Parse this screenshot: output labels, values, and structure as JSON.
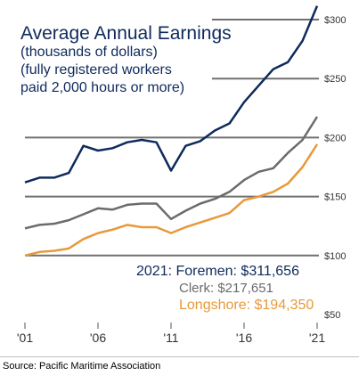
{
  "chart_data": {
    "type": "line",
    "title": "Average Annual Earnings",
    "subtitle_lines": [
      "(thousands of dollars)",
      "(fully registered workers",
      "paid 2,000 hours or more)"
    ],
    "x": [
      2001,
      2002,
      2003,
      2004,
      2005,
      2006,
      2007,
      2008,
      2009,
      2010,
      2011,
      2012,
      2013,
      2014,
      2015,
      2016,
      2017,
      2018,
      2019,
      2020,
      2021
    ],
    "x_tick_values": [
      2001,
      2006,
      2011,
      2016,
      2021
    ],
    "x_tick_labels": [
      "'01",
      "'06",
      "'11",
      "'16",
      "'21"
    ],
    "y_tick_values": [
      50,
      100,
      150,
      200,
      250,
      300
    ],
    "y_tick_labels": [
      "$50",
      "$100",
      "$150",
      "$200",
      "$250",
      "$300"
    ],
    "ylim": [
      50,
      310
    ],
    "series": [
      {
        "name": "Foremen",
        "color": "#0e2a5c",
        "values": [
          162,
          166,
          166,
          170,
          193,
          189,
          191,
          196,
          198,
          196,
          172,
          193,
          197,
          206,
          212,
          230,
          244,
          258,
          264,
          282,
          311.656
        ]
      },
      {
        "name": "Clerk",
        "color": "#6b6b6b",
        "values": [
          123,
          126,
          127,
          130,
          135,
          140,
          139,
          143,
          144,
          144,
          131,
          138,
          144,
          148,
          154,
          164,
          171,
          174,
          187,
          198,
          217.651
        ]
      },
      {
        "name": "Longshore",
        "color": "#e8993a",
        "values": [
          100,
          103,
          104,
          106,
          114,
          119,
          122,
          126,
          124,
          124,
          119,
          124,
          128,
          132,
          136,
          147,
          150,
          154,
          161,
          175,
          194.35
        ]
      }
    ],
    "summary": {
      "year": "2021:",
      "lines": [
        {
          "label": "Foremen: $311,656",
          "color": "#0e2a5c"
        },
        {
          "label": "Clerk: $217,651",
          "color": "#6b6b6b"
        },
        {
          "label": "Longshore: $194,350",
          "color": "#e8993a"
        }
      ]
    }
  },
  "source": "Source: Pacific Maritime Association",
  "colors": {
    "gridline": "#707070",
    "axis_text": "#333333"
  }
}
